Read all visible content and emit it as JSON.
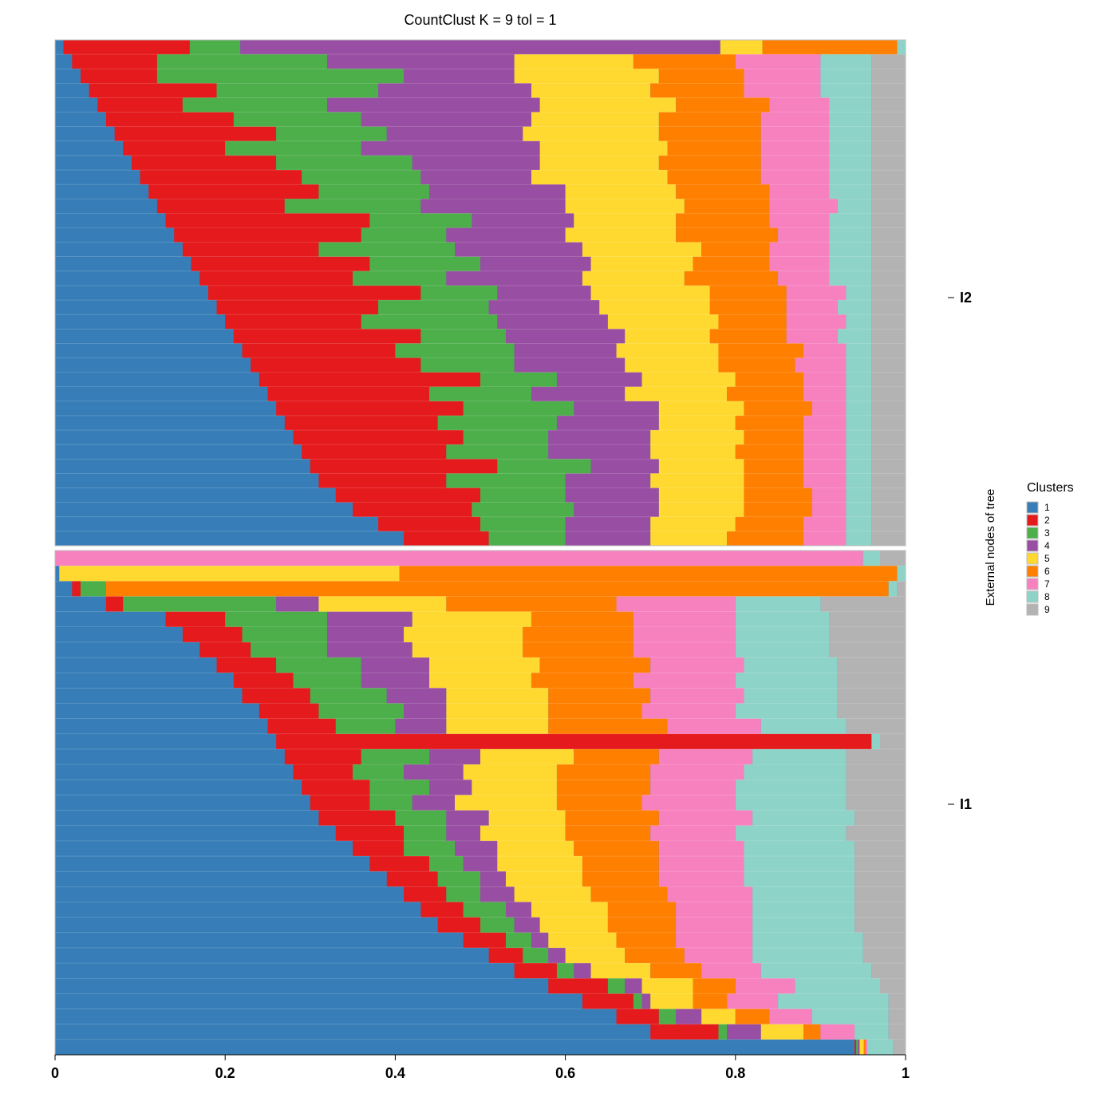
{
  "chart_data": {
    "type": "bar",
    "subtype": "stacked-horizontal-structure-plot",
    "title": "CountClust K =  9 tol =  1",
    "xlabel": "",
    "ylabel": "External nodes of tree",
    "xlim": [
      0,
      1
    ],
    "x_ticks": [
      "0",
      "0.2",
      "0.4",
      "0.6",
      "0.8",
      "1"
    ],
    "grid": false,
    "legend": {
      "title": "Clusters",
      "placement": "right",
      "entries": [
        "1",
        "2",
        "3",
        "4",
        "5",
        "6",
        "7",
        "8",
        "9"
      ]
    },
    "colors": [
      "#377EB8",
      "#E41A1C",
      "#4DAF4A",
      "#984EA3",
      "#FFD92F",
      "#FF7F00",
      "#F781BF",
      "#8DD3C7",
      "#B3B3B3"
    ],
    "groups": [
      {
        "name": "I2",
        "rows": [
          [
            0.01,
            0.15,
            0.06,
            0.57,
            0.05,
            0.16,
            0.0,
            0.01,
            0.0
          ],
          [
            0.02,
            0.1,
            0.2,
            0.22,
            0.14,
            0.12,
            0.1,
            0.06,
            0.04
          ],
          [
            0.03,
            0.09,
            0.29,
            0.13,
            0.17,
            0.1,
            0.09,
            0.06,
            0.04
          ],
          [
            0.04,
            0.15,
            0.19,
            0.18,
            0.14,
            0.11,
            0.09,
            0.06,
            0.04
          ],
          [
            0.05,
            0.1,
            0.17,
            0.25,
            0.16,
            0.11,
            0.07,
            0.05,
            0.04
          ],
          [
            0.06,
            0.15,
            0.15,
            0.2,
            0.15,
            0.12,
            0.08,
            0.05,
            0.04
          ],
          [
            0.07,
            0.19,
            0.13,
            0.16,
            0.16,
            0.12,
            0.08,
            0.05,
            0.04
          ],
          [
            0.08,
            0.12,
            0.16,
            0.21,
            0.15,
            0.11,
            0.08,
            0.05,
            0.04
          ],
          [
            0.09,
            0.17,
            0.16,
            0.15,
            0.14,
            0.12,
            0.08,
            0.05,
            0.04
          ],
          [
            0.1,
            0.19,
            0.14,
            0.13,
            0.16,
            0.11,
            0.08,
            0.05,
            0.04
          ],
          [
            0.11,
            0.2,
            0.13,
            0.16,
            0.13,
            0.11,
            0.07,
            0.05,
            0.04
          ],
          [
            0.12,
            0.15,
            0.16,
            0.17,
            0.14,
            0.1,
            0.08,
            0.04,
            0.04
          ],
          [
            0.13,
            0.24,
            0.12,
            0.12,
            0.12,
            0.11,
            0.07,
            0.05,
            0.04
          ],
          [
            0.14,
            0.22,
            0.1,
            0.14,
            0.13,
            0.12,
            0.06,
            0.05,
            0.04
          ],
          [
            0.15,
            0.16,
            0.16,
            0.15,
            0.14,
            0.08,
            0.07,
            0.05,
            0.04
          ],
          [
            0.16,
            0.21,
            0.13,
            0.13,
            0.12,
            0.09,
            0.07,
            0.05,
            0.04
          ],
          [
            0.17,
            0.18,
            0.11,
            0.16,
            0.12,
            0.11,
            0.06,
            0.05,
            0.04
          ],
          [
            0.18,
            0.25,
            0.09,
            0.11,
            0.14,
            0.09,
            0.07,
            0.03,
            0.04
          ],
          [
            0.19,
            0.19,
            0.13,
            0.13,
            0.13,
            0.09,
            0.06,
            0.04,
            0.04
          ],
          [
            0.2,
            0.16,
            0.16,
            0.13,
            0.13,
            0.08,
            0.07,
            0.03,
            0.04
          ],
          [
            0.21,
            0.22,
            0.1,
            0.14,
            0.1,
            0.09,
            0.06,
            0.04,
            0.04
          ],
          [
            0.22,
            0.18,
            0.14,
            0.12,
            0.12,
            0.1,
            0.05,
            0.03,
            0.04
          ],
          [
            0.23,
            0.2,
            0.11,
            0.13,
            0.11,
            0.09,
            0.06,
            0.03,
            0.04
          ],
          [
            0.24,
            0.26,
            0.09,
            0.1,
            0.11,
            0.08,
            0.05,
            0.03,
            0.04
          ],
          [
            0.25,
            0.19,
            0.12,
            0.11,
            0.12,
            0.09,
            0.05,
            0.03,
            0.04
          ],
          [
            0.26,
            0.22,
            0.13,
            0.1,
            0.1,
            0.08,
            0.04,
            0.03,
            0.04
          ],
          [
            0.27,
            0.18,
            0.14,
            0.12,
            0.09,
            0.08,
            0.05,
            0.03,
            0.04
          ],
          [
            0.28,
            0.2,
            0.1,
            0.12,
            0.11,
            0.07,
            0.05,
            0.03,
            0.04
          ],
          [
            0.29,
            0.17,
            0.12,
            0.12,
            0.1,
            0.08,
            0.05,
            0.03,
            0.04
          ],
          [
            0.3,
            0.22,
            0.11,
            0.08,
            0.1,
            0.07,
            0.05,
            0.03,
            0.04
          ],
          [
            0.31,
            0.15,
            0.14,
            0.1,
            0.11,
            0.07,
            0.05,
            0.03,
            0.04
          ],
          [
            0.33,
            0.17,
            0.1,
            0.11,
            0.1,
            0.08,
            0.04,
            0.03,
            0.04
          ],
          [
            0.35,
            0.14,
            0.12,
            0.1,
            0.1,
            0.08,
            0.04,
            0.03,
            0.04
          ],
          [
            0.38,
            0.12,
            0.1,
            0.1,
            0.1,
            0.08,
            0.05,
            0.03,
            0.04
          ],
          [
            0.41,
            0.1,
            0.09,
            0.1,
            0.09,
            0.09,
            0.05,
            0.03,
            0.04
          ]
        ]
      },
      {
        "name": "I1",
        "rows": [
          [
            0.0,
            0.0,
            0.0,
            0.0,
            0.0,
            0.0,
            0.95,
            0.02,
            0.03
          ],
          [
            0.005,
            0.0,
            0.0,
            0.0,
            0.4,
            0.585,
            0.0,
            0.01,
            0.0
          ],
          [
            0.02,
            0.01,
            0.03,
            0.0,
            0.0,
            0.92,
            0.0,
            0.01,
            0.01
          ],
          [
            0.06,
            0.02,
            0.18,
            0.05,
            0.15,
            0.2,
            0.14,
            0.1,
            0.1
          ],
          [
            0.13,
            0.07,
            0.12,
            0.1,
            0.14,
            0.12,
            0.12,
            0.11,
            0.09
          ],
          [
            0.15,
            0.07,
            0.1,
            0.09,
            0.14,
            0.13,
            0.12,
            0.11,
            0.09
          ],
          [
            0.17,
            0.06,
            0.09,
            0.1,
            0.13,
            0.13,
            0.12,
            0.11,
            0.09
          ],
          [
            0.19,
            0.07,
            0.1,
            0.08,
            0.13,
            0.13,
            0.11,
            0.11,
            0.08
          ],
          [
            0.21,
            0.07,
            0.08,
            0.08,
            0.12,
            0.12,
            0.12,
            0.12,
            0.08
          ],
          [
            0.22,
            0.08,
            0.09,
            0.07,
            0.12,
            0.12,
            0.11,
            0.11,
            0.08
          ],
          [
            0.24,
            0.07,
            0.1,
            0.05,
            0.12,
            0.11,
            0.11,
            0.12,
            0.08
          ],
          [
            0.25,
            0.08,
            0.07,
            0.06,
            0.12,
            0.14,
            0.11,
            0.1,
            0.07
          ],
          [
            0.26,
            0.7,
            0.0,
            0.0,
            0.0,
            0.0,
            0.0,
            0.01,
            0.03
          ],
          [
            0.27,
            0.09,
            0.08,
            0.06,
            0.11,
            0.1,
            0.11,
            0.11,
            0.07
          ],
          [
            0.28,
            0.07,
            0.06,
            0.07,
            0.11,
            0.11,
            0.11,
            0.12,
            0.07
          ],
          [
            0.29,
            0.08,
            0.07,
            0.05,
            0.1,
            0.11,
            0.1,
            0.13,
            0.07
          ],
          [
            0.3,
            0.07,
            0.05,
            0.05,
            0.12,
            0.1,
            0.11,
            0.13,
            0.07
          ],
          [
            0.31,
            0.09,
            0.06,
            0.05,
            0.09,
            0.11,
            0.11,
            0.12,
            0.06
          ],
          [
            0.33,
            0.08,
            0.05,
            0.04,
            0.1,
            0.1,
            0.1,
            0.13,
            0.07
          ],
          [
            0.35,
            0.06,
            0.06,
            0.05,
            0.09,
            0.1,
            0.1,
            0.13,
            0.06
          ],
          [
            0.37,
            0.07,
            0.04,
            0.04,
            0.1,
            0.09,
            0.1,
            0.13,
            0.06
          ],
          [
            0.39,
            0.06,
            0.05,
            0.03,
            0.09,
            0.09,
            0.1,
            0.13,
            0.06
          ],
          [
            0.41,
            0.05,
            0.04,
            0.04,
            0.09,
            0.09,
            0.1,
            0.12,
            0.06
          ],
          [
            0.43,
            0.05,
            0.05,
            0.03,
            0.09,
            0.08,
            0.09,
            0.12,
            0.06
          ],
          [
            0.45,
            0.05,
            0.04,
            0.03,
            0.08,
            0.08,
            0.09,
            0.12,
            0.06
          ],
          [
            0.48,
            0.05,
            0.03,
            0.02,
            0.08,
            0.07,
            0.09,
            0.13,
            0.05
          ],
          [
            0.51,
            0.04,
            0.03,
            0.02,
            0.07,
            0.07,
            0.08,
            0.13,
            0.05
          ],
          [
            0.54,
            0.05,
            0.02,
            0.02,
            0.07,
            0.06,
            0.07,
            0.13,
            0.04
          ],
          [
            0.58,
            0.07,
            0.02,
            0.02,
            0.06,
            0.05,
            0.07,
            0.1,
            0.03
          ],
          [
            0.62,
            0.06,
            0.01,
            0.01,
            0.05,
            0.04,
            0.06,
            0.13,
            0.02
          ],
          [
            0.66,
            0.05,
            0.02,
            0.03,
            0.04,
            0.04,
            0.05,
            0.09,
            0.02
          ],
          [
            0.7,
            0.08,
            0.01,
            0.04,
            0.05,
            0.02,
            0.04,
            0.04,
            0.02
          ],
          [
            0.94,
            0.002,
            0.002,
            0.002,
            0.005,
            0.002,
            0.002,
            0.03,
            0.015
          ]
        ]
      }
    ]
  }
}
